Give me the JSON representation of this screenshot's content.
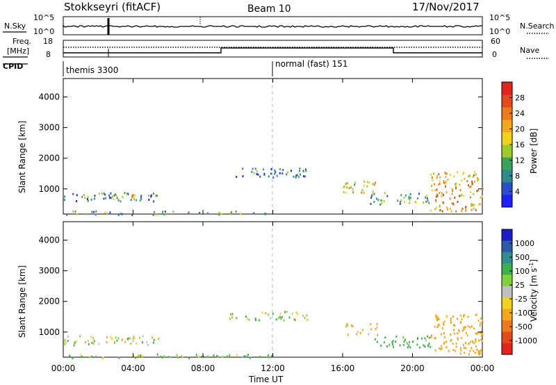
{
  "header": {
    "station": "Stokkseyri (fitACF)",
    "beam": "Beam 10",
    "date": "17/Nov/2017"
  },
  "noise_panel": {
    "left_label": "N.Sky",
    "right_label": "N.Search",
    "left_ticks": [
      "10^5",
      "10^0"
    ],
    "right_ticks": [
      "10^5",
      "10^0"
    ]
  },
  "freq_panel": {
    "left_label_line1": "Freq.",
    "left_label_line2": "[MHz]",
    "right_label": "Nave",
    "left_ticks": [
      "18",
      "8"
    ],
    "right_ticks": [
      "60",
      "0"
    ]
  },
  "cpid": {
    "label": "CPID",
    "modes": [
      {
        "name": "themis 3300",
        "start_hour": 0
      },
      {
        "name": "normal (fast) 151",
        "start_hour": 12
      }
    ]
  },
  "x_axis": {
    "label": "Time UT",
    "ticks": [
      "00:00",
      "04:00",
      "08:00",
      "12:00",
      "16:00",
      "20:00",
      "00:00"
    ],
    "range_hours": [
      0,
      24
    ]
  },
  "y_axis": {
    "label": "Slant Range [km]",
    "ticks": [
      "1000",
      "2000",
      "3000",
      "4000"
    ],
    "tick_values": [
      1000,
      2000,
      3000,
      4000
    ],
    "range_km": [
      180,
      4600
    ]
  },
  "colorbars": {
    "power": {
      "label": "Power [dB]",
      "ticks": [
        "4",
        "8",
        "12",
        "16",
        "20",
        "24",
        "28"
      ],
      "colors": [
        "#1e1eff",
        "#2a4fc8",
        "#2f8a8a",
        "#3aa35a",
        "#9ccb2a",
        "#f2d21c",
        "#f2a71c",
        "#ee7a1c",
        "#e64a1c",
        "#e3231c"
      ]
    },
    "velocity": {
      "label": "Velocity [m s^-1]",
      "ticks": [
        "1000",
        "500",
        "100",
        "25",
        "-25",
        "-100",
        "-500",
        "-1000"
      ],
      "colors": [
        "#1c1cc8",
        "#2a5aa8",
        "#2f8e8e",
        "#3eb04a",
        "#7fd23c",
        "#bfbfbf",
        "#f2d21c",
        "#f2a71c",
        "#ee7a1c",
        "#e64a1c",
        "#e3231c"
      ]
    }
  },
  "chart_data": {
    "type": "heatmap",
    "title": "Stokkseyri (fitACF)",
    "xlabel": "Time UT",
    "ylabel": "Slant Range [km]",
    "xlim_hours": [
      0,
      24
    ],
    "ylim_km": [
      180,
      4600
    ],
    "panels": [
      "Power [dB]",
      "Velocity [m s^-1]"
    ],
    "echo_regions": [
      {
        "t_start": 0.0,
        "t_end": 5.5,
        "r_start": 600,
        "r_end": 900,
        "power": 8,
        "velocity": 20
      },
      {
        "t_start": 2.6,
        "t_end": 4.2,
        "r_start": 680,
        "r_end": 860,
        "power": 20,
        "velocity": -20
      },
      {
        "t_start": 0.0,
        "t_end": 12.0,
        "r_start": 180,
        "r_end": 300,
        "power": 10,
        "velocity": 60
      },
      {
        "t_start": 9.5,
        "t_end": 14.0,
        "r_start": 1400,
        "r_end": 1700,
        "power": 6,
        "velocity": 10
      },
      {
        "t_start": 16.0,
        "t_end": 18.0,
        "r_start": 900,
        "r_end": 1300,
        "power": 18,
        "velocity": -150
      },
      {
        "t_start": 17.5,
        "t_end": 21.0,
        "r_start": 500,
        "r_end": 900,
        "power": 10,
        "velocity": 200
      },
      {
        "t_start": 21.0,
        "t_end": 24.0,
        "r_start": 300,
        "r_end": 1600,
        "power": 20,
        "velocity": -300
      }
    ]
  }
}
